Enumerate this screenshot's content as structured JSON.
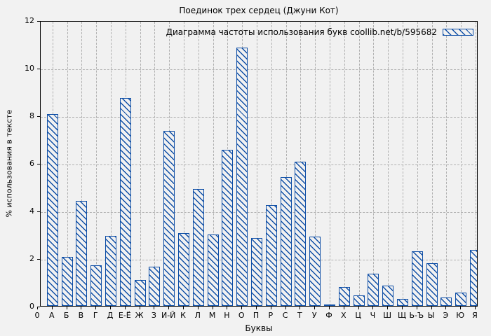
{
  "chart_data": {
    "type": "bar",
    "title": "Поединок трех сердец (Джуни Кот)",
    "legend": {
      "label": "Диаграмма частоты использования букв coollib.net/b/595682",
      "position": "top-right",
      "swatch": "blue-diagonal-hatch"
    },
    "xlabel": "Буквы",
    "ylabel": "% использования в тексте",
    "ylim": [
      0,
      12
    ],
    "yticks": [
      0,
      2,
      4,
      6,
      8,
      10,
      12
    ],
    "grid": true,
    "categories": [
      "0",
      "А",
      "Б",
      "В",
      "Г",
      "Д",
      "Е-Ё",
      "Ж",
      "З",
      "И-Й",
      "К",
      "Л",
      "М",
      "Н",
      "О",
      "П",
      "Р",
      "С",
      "Т",
      "У",
      "Ф",
      "Х",
      "Ц",
      "Ч",
      "Ш",
      "Щ",
      "Ь-Ъ",
      "Ы",
      "Э",
      "Ю",
      "Я"
    ],
    "values": [
      0,
      8.05,
      2.05,
      4.4,
      1.7,
      2.95,
      8.75,
      1.1,
      1.65,
      7.35,
      3.05,
      4.9,
      3.0,
      6.55,
      10.85,
      2.85,
      4.25,
      5.4,
      6.05,
      2.9,
      0.05,
      0.8,
      0.45,
      1.35,
      0.85,
      0.3,
      2.3,
      1.8,
      0.35,
      0.55,
      2.35
    ],
    "colors": {
      "bar_hatch": "#0e4ea6",
      "grid": "#b0b0b0",
      "axis": "#000000",
      "background": "#f2f2f2"
    }
  }
}
